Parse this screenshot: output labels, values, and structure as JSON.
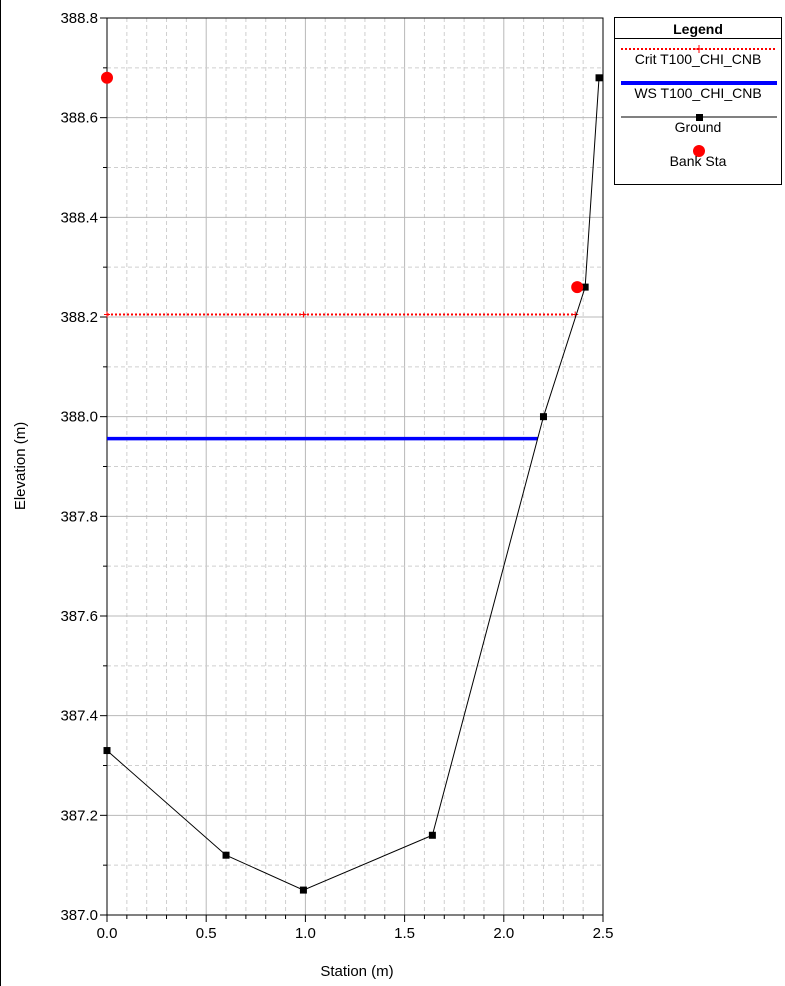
{
  "chart_data": {
    "type": "line",
    "xlabel": "Station (m)",
    "ylabel": "Elevation (m)",
    "xlim": [
      0.0,
      2.5
    ],
    "ylim": [
      387.0,
      388.8
    ],
    "x_ticks": [
      "0.0",
      "0.5",
      "1.0",
      "1.5",
      "2.0",
      "2.5"
    ],
    "y_ticks": [
      "387.0",
      "387.2",
      "387.4",
      "387.6",
      "387.8",
      "388.0",
      "388.2",
      "388.4",
      "388.6",
      "388.8"
    ],
    "grid": true,
    "legend_placement": "top-right",
    "legend_title": "Legend",
    "series": [
      {
        "name": "Crit T100_CHI_CNB",
        "color": "#ff0000",
        "style": "dotted",
        "points": [
          [
            0.0,
            388.205
          ],
          [
            0.99,
            388.205
          ],
          [
            2.36,
            388.205
          ]
        ]
      },
      {
        "name": "WS T100_CHI_CNB",
        "color": "#0000ff",
        "style": "solid",
        "points": [
          [
            0.0,
            387.956
          ],
          [
            2.17,
            387.956
          ]
        ]
      },
      {
        "name": "Ground",
        "color": "#000000",
        "style": "solid-square-markers",
        "points": [
          [
            0.0,
            387.33
          ],
          [
            0.6,
            387.12
          ],
          [
            0.99,
            387.05
          ],
          [
            1.64,
            387.16
          ],
          [
            2.2,
            388.0
          ],
          [
            2.41,
            388.26
          ],
          [
            2.48,
            388.68
          ]
        ]
      },
      {
        "name": "Bank Sta",
        "color": "#ff0000",
        "style": "circle-markers",
        "points": [
          [
            0.0,
            388.68
          ],
          [
            2.37,
            388.26
          ]
        ]
      }
    ]
  }
}
